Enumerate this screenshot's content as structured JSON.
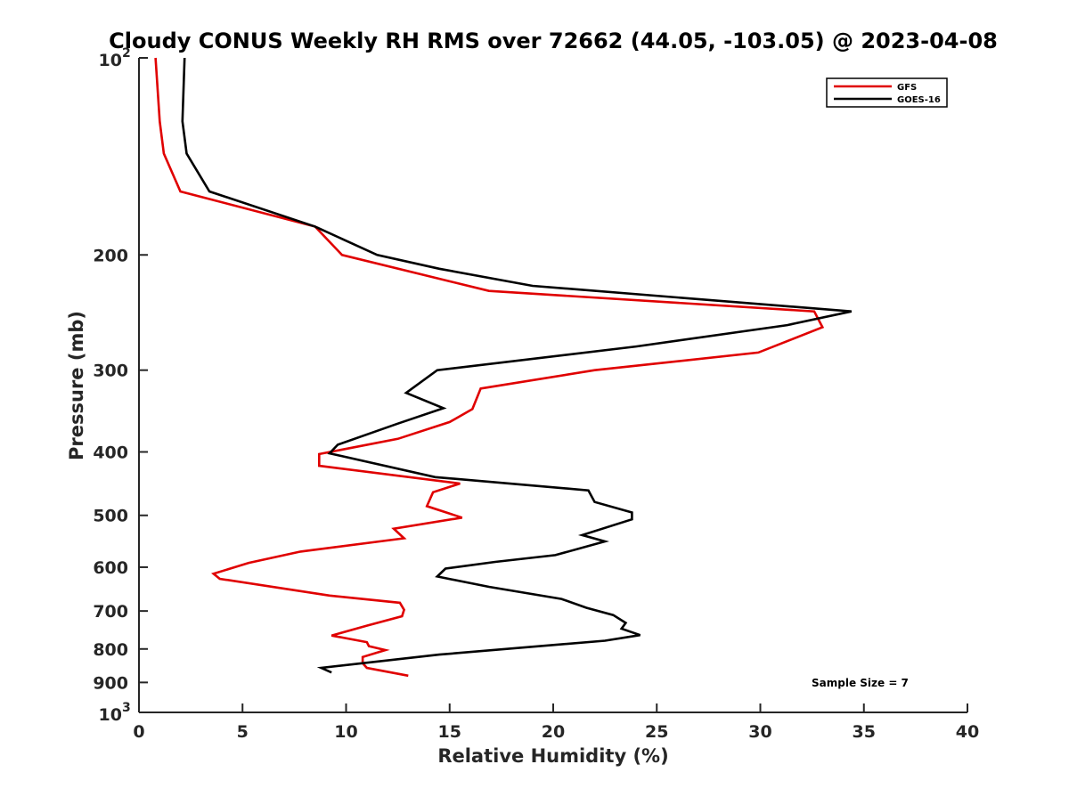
{
  "chart_data": {
    "type": "line",
    "title": "Cloudy CONUS Weekly RH RMS over 72662 (44.05, -103.05) @ 2023-04-08",
    "xlabel": "Relative Humidity (%)",
    "ylabel": "Pressure (mb)",
    "xlim": [
      0,
      40
    ],
    "ylim": [
      100,
      1000
    ],
    "yscale": "log",
    "y_reversed": true,
    "x_ticks": [
      "0",
      "5",
      "10",
      "15",
      "20",
      "25",
      "30",
      "35",
      "40"
    ],
    "y_ticks": [
      {
        "value": 100,
        "label": "10",
        "sup": "2"
      },
      {
        "value": 200,
        "label": "200",
        "sup": ""
      },
      {
        "value": 300,
        "label": "300",
        "sup": ""
      },
      {
        "value": 400,
        "label": "400",
        "sup": ""
      },
      {
        "value": 500,
        "label": "500",
        "sup": ""
      },
      {
        "value": 600,
        "label": "600",
        "sup": ""
      },
      {
        "value": 700,
        "label": "700",
        "sup": ""
      },
      {
        "value": 800,
        "label": "800",
        "sup": ""
      },
      {
        "value": 900,
        "label": "900",
        "sup": ""
      },
      {
        "value": 1000,
        "label": "10",
        "sup": "3"
      }
    ],
    "grid": false,
    "legend_position": "top-right",
    "annotation": "Sample Size = 7",
    "series": [
      {
        "name": "GFS",
        "color": "#e00000",
        "points": [
          [
            0.8,
            100
          ],
          [
            1.0,
            125
          ],
          [
            1.2,
            140
          ],
          [
            2.0,
            160
          ],
          [
            8.5,
            181
          ],
          [
            9.8,
            200
          ],
          [
            16.9,
            227
          ],
          [
            32.6,
            244
          ],
          [
            33.0,
            258
          ],
          [
            29.9,
            282
          ],
          [
            22.0,
            300
          ],
          [
            16.5,
            320
          ],
          [
            16.1,
            344
          ],
          [
            15.0,
            360
          ],
          [
            12.5,
            382
          ],
          [
            8.7,
            403
          ],
          [
            8.7,
            420
          ],
          [
            15.5,
            447
          ],
          [
            14.2,
            461
          ],
          [
            13.9,
            484
          ],
          [
            15.6,
            504
          ],
          [
            12.3,
            524
          ],
          [
            12.8,
            542
          ],
          [
            7.8,
            568
          ],
          [
            5.3,
            591
          ],
          [
            3.6,
            614
          ],
          [
            3.9,
            625
          ],
          [
            9.2,
            663
          ],
          [
            12.6,
            680
          ],
          [
            12.8,
            697
          ],
          [
            12.7,
            713
          ],
          [
            11.0,
            737
          ],
          [
            9.3,
            763
          ],
          [
            11.0,
            781
          ],
          [
            11.1,
            792
          ],
          [
            11.9,
            803
          ],
          [
            10.8,
            823
          ],
          [
            10.8,
            841
          ],
          [
            11.0,
            855
          ],
          [
            13.0,
            879
          ]
        ]
      },
      {
        "name": "GOES-16",
        "color": "#000000",
        "points": [
          [
            2.2,
            100
          ],
          [
            2.1,
            125
          ],
          [
            2.3,
            140
          ],
          [
            3.4,
            160
          ],
          [
            8.5,
            181
          ],
          [
            11.5,
            200
          ],
          [
            14.5,
            210
          ],
          [
            19.0,
            223
          ],
          [
            34.4,
            244
          ],
          [
            31.3,
            256
          ],
          [
            24.0,
            276
          ],
          [
            14.4,
            300
          ],
          [
            12.9,
            325
          ],
          [
            14.7,
            343
          ],
          [
            12.5,
            362
          ],
          [
            9.6,
            390
          ],
          [
            9.2,
            402
          ],
          [
            14.3,
            437
          ],
          [
            21.7,
            458
          ],
          [
            22.0,
            477
          ],
          [
            23.8,
            495
          ],
          [
            23.8,
            507
          ],
          [
            21.4,
            536
          ],
          [
            22.5,
            548
          ],
          [
            20.1,
            575
          ],
          [
            17.2,
            589
          ],
          [
            14.8,
            603
          ],
          [
            14.4,
            620
          ],
          [
            16.9,
            643
          ],
          [
            20.4,
            671
          ],
          [
            21.6,
            692
          ],
          [
            22.9,
            710
          ],
          [
            23.5,
            730
          ],
          [
            23.3,
            745
          ],
          [
            24.2,
            762
          ],
          [
            22.5,
            777
          ],
          [
            14.5,
            816
          ],
          [
            8.8,
            855
          ],
          [
            9.3,
            869
          ]
        ]
      }
    ]
  }
}
